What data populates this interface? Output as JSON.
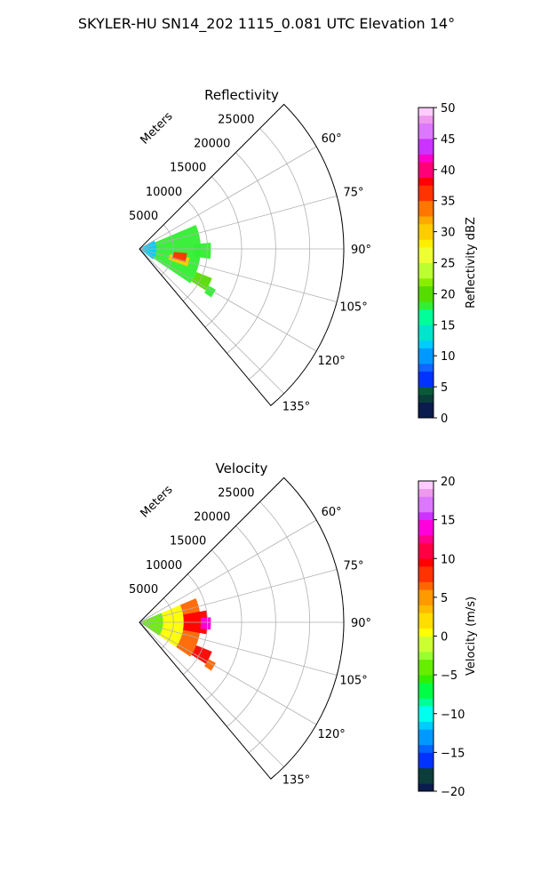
{
  "figure": {
    "title": "SKYLER-HU  SN14_202  1115_0.081 UTC Elevation 14°"
  },
  "chart_data": [
    {
      "type": "heatmap",
      "subtype": "polar-sector-ppi",
      "title": "Reflectivity",
      "range_axis_label": "Meters",
      "range_ticks": [
        5000,
        10000,
        15000,
        20000,
        25000
      ],
      "range_tick_labels": [
        "5000",
        "10000",
        "15000",
        "20000",
        "25000"
      ],
      "range_max": 30000,
      "azimuth_min_deg": 45,
      "azimuth_max_deg": 140,
      "azimuth_ticks": [
        60,
        75,
        90,
        105,
        120,
        135
      ],
      "azimuth_tick_labels": [
        "60°",
        "75°",
        "90°",
        "105°",
        "120°",
        "135°"
      ],
      "grid": true,
      "colorbar": {
        "label": "Reflectivity dBZ",
        "min": 0,
        "max": 50,
        "ticks": [
          0,
          5,
          10,
          15,
          20,
          25,
          30,
          35,
          40,
          45,
          50
        ],
        "tick_labels": [
          "0",
          "5",
          "10",
          "15",
          "20",
          "25",
          "30",
          "35",
          "40",
          "45",
          "50"
        ],
        "placement": "right"
      },
      "echo_regions": [
        {
          "az_start": 67,
          "az_end": 124,
          "range_start": 0,
          "range_end": 9000,
          "value": 18
        },
        {
          "az_start": 85,
          "az_end": 98,
          "range_start": 8000,
          "range_end": 10500,
          "value": 17
        },
        {
          "az_start": 100,
          "az_end": 110,
          "range_start": 4500,
          "range_end": 7500,
          "value": 30
        },
        {
          "az_start": 95,
          "az_end": 106,
          "range_start": 5000,
          "range_end": 7000,
          "value": 35
        },
        {
          "az_start": 112,
          "az_end": 122,
          "range_start": 9000,
          "range_end": 11500,
          "value": 19
        },
        {
          "az_start": 118,
          "az_end": 124,
          "range_start": 11500,
          "range_end": 12700,
          "value": 18
        },
        {
          "az_start": 60,
          "az_end": 128,
          "range_start": 0,
          "range_end": 2500,
          "value": 12
        }
      ]
    },
    {
      "type": "heatmap",
      "subtype": "polar-sector-ppi",
      "title": "Velocity",
      "range_axis_label": "Meters",
      "range_ticks": [
        5000,
        10000,
        15000,
        20000,
        25000
      ],
      "range_tick_labels": [
        "5000",
        "10000",
        "15000",
        "20000",
        "25000"
      ],
      "range_max": 30000,
      "azimuth_min_deg": 45,
      "azimuth_max_deg": 140,
      "azimuth_ticks": [
        60,
        75,
        90,
        105,
        120,
        135
      ],
      "azimuth_tick_labels": [
        "60°",
        "75°",
        "90°",
        "105°",
        "120°",
        "135°"
      ],
      "grid": true,
      "colorbar": {
        "label": "Velocity (m/s)",
        "min": -20,
        "max": 20,
        "ticks": [
          -20,
          -15,
          -10,
          -5,
          0,
          5,
          10,
          15,
          20
        ],
        "tick_labels": [
          "−20",
          "−15",
          "−10",
          "−5",
          "0",
          "5",
          "10",
          "15",
          "20"
        ],
        "placement": "right"
      },
      "echo_regions": [
        {
          "az_start": 67,
          "az_end": 124,
          "range_start": 0,
          "range_end": 3500,
          "value": -4
        },
        {
          "az_start": 67,
          "az_end": 124,
          "range_start": 3500,
          "range_end": 6500,
          "value": 1
        },
        {
          "az_start": 67,
          "az_end": 124,
          "range_start": 6500,
          "range_end": 9000,
          "value": 6
        },
        {
          "az_start": 80,
          "az_end": 100,
          "range_start": 6500,
          "range_end": 10000,
          "value": 10
        },
        {
          "az_start": 86,
          "az_end": 96,
          "range_start": 9000,
          "range_end": 10500,
          "value": 14
        },
        {
          "az_start": 112,
          "az_end": 122,
          "range_start": 9000,
          "range_end": 11500,
          "value": 9
        },
        {
          "az_start": 118,
          "az_end": 124,
          "range_start": 11500,
          "range_end": 12700,
          "value": 6
        }
      ]
    }
  ]
}
